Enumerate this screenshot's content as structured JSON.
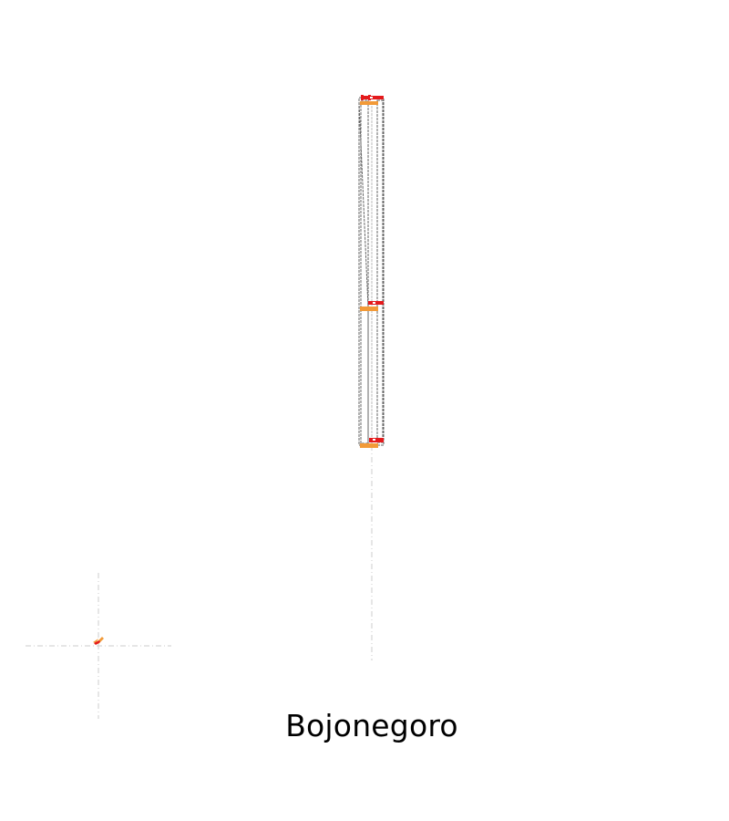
{
  "map": {
    "region_name": "Bojonegoro"
  },
  "colors": {
    "background": "#ffffff",
    "frame_stroke": "#666666",
    "guide_line": "#cccccc",
    "feature_orange": "#f29a38",
    "feature_red": "#e41a1c",
    "label_text": "#000000"
  }
}
